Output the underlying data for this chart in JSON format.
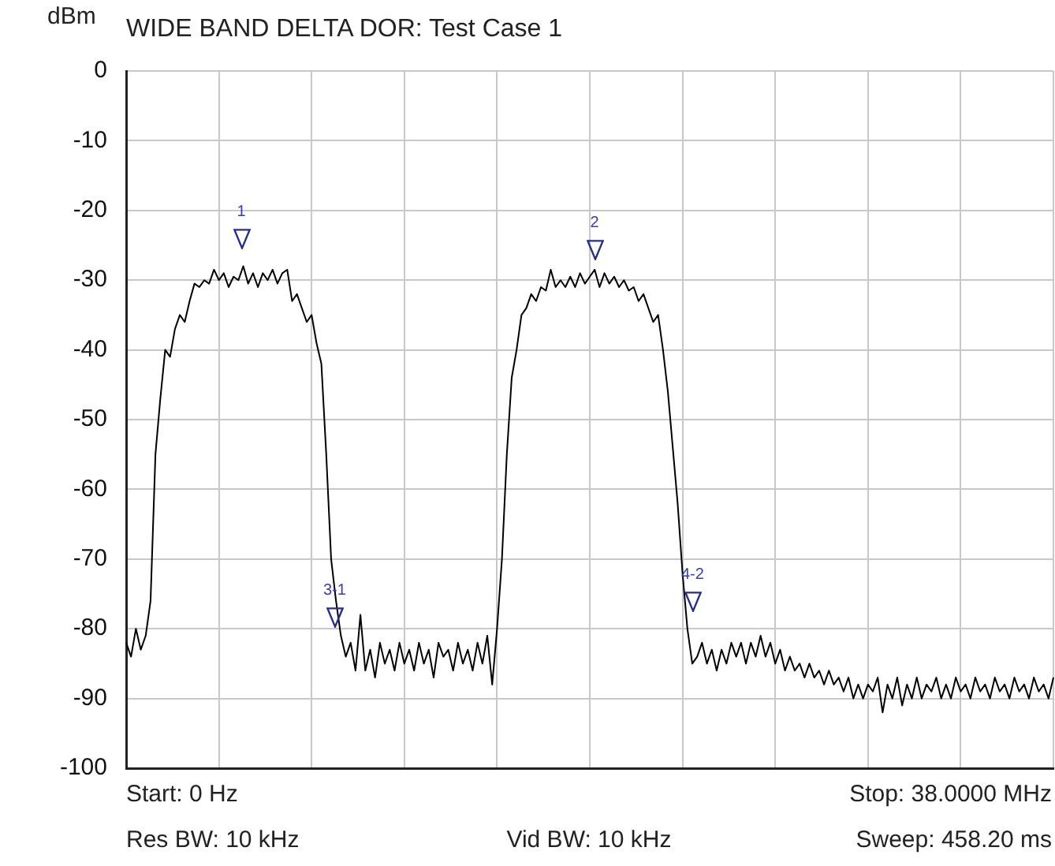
{
  "chart_data": {
    "type": "line",
    "title": "WIDE BAND DELTA DOR: Test Case 1",
    "ylabel": "dBm",
    "categories": [
      null,
      null,
      null,
      null,
      null,
      null,
      null,
      null,
      null,
      null,
      null,
      null,
      null,
      null,
      null,
      null,
      null,
      null,
      null,
      null,
      null,
      null,
      null,
      null,
      null,
      null,
      null,
      null,
      null,
      null,
      null,
      null,
      null,
      null,
      null,
      null,
      null,
      null,
      null,
      null,
      null,
      null,
      null,
      null,
      null,
      null,
      null,
      null,
      null,
      null,
      null,
      null,
      null,
      null,
      null,
      null,
      null,
      null,
      null,
      null,
      null,
      null,
      null,
      null,
      null,
      null,
      null,
      null,
      null,
      null,
      null,
      null,
      null,
      null,
      null,
      null,
      null,
      null,
      null,
      null,
      null,
      null,
      null,
      null,
      null,
      null,
      null,
      null,
      null,
      null,
      null,
      null,
      null,
      null,
      null,
      null,
      null,
      null,
      null,
      null,
      null,
      null,
      null,
      null,
      null,
      null,
      null,
      null,
      null,
      null,
      null,
      null,
      null,
      null,
      null,
      null,
      null,
      null,
      null,
      null,
      null,
      null,
      null,
      null,
      null,
      null,
      null,
      null,
      null,
      null,
      null,
      null,
      null,
      null,
      null,
      null,
      null,
      null,
      null,
      null,
      null,
      null,
      null,
      null,
      null,
      null,
      null,
      null,
      null,
      null,
      null,
      null,
      null,
      null,
      null,
      null,
      null,
      null,
      null,
      null,
      null,
      null,
      null,
      null,
      null,
      null,
      null,
      null,
      null,
      null,
      null,
      null,
      null,
      null,
      null,
      null,
      null,
      null,
      null,
      null,
      null,
      null,
      null,
      null,
      null,
      null,
      null,
      null,
      null,
      null,
      null
    ],
    "ylim": [
      -100,
      0
    ],
    "yticks": [
      0,
      -10,
      -20,
      -30,
      -40,
      -50,
      -60,
      -70,
      -80,
      -90,
      -100
    ],
    "tick_labels": "y",
    "grid": true,
    "legend": false,
    "marker": "none",
    "line_style": "solid",
    "series": [
      {
        "color": "#000000",
        "values": [
          -82,
          -84,
          -80,
          -83,
          -81,
          -76,
          -55,
          -47,
          -40,
          -41,
          -37,
          -35,
          -36,
          -33,
          -30.5,
          -31,
          -30,
          -30.5,
          -28.5,
          -30,
          -29,
          -31,
          -29.5,
          -30,
          -28,
          -30.5,
          -29,
          -31,
          -29,
          -30,
          -28.5,
          -30.5,
          -29,
          -28.5,
          -33,
          -32,
          -34,
          -36,
          -35,
          -39,
          -42,
          -55,
          -70,
          -76,
          -81,
          -84,
          -82,
          -86,
          -78,
          -86,
          -83,
          -87,
          -82,
          -85,
          -83,
          -86,
          -82,
          -85,
          -83,
          -86,
          -82,
          -85,
          -83,
          -87,
          -82,
          -84,
          -83,
          -86,
          -82,
          -85,
          -83,
          -86,
          -82,
          -85,
          -81,
          -88,
          -80,
          -70,
          -55,
          -44,
          -40,
          -35,
          -34,
          -32,
          -33,
          -31,
          -31.5,
          -28.5,
          -31,
          -30,
          -31,
          -29.5,
          -31,
          -29,
          -30.5,
          -29.5,
          -28.5,
          -31,
          -29,
          -30.5,
          -29.5,
          -31,
          -30,
          -31.5,
          -31,
          -33,
          -32,
          -34,
          -36,
          -35,
          -40,
          -46,
          -54,
          -62,
          -72,
          -80,
          -85,
          -84,
          -82,
          -85,
          -83,
          -86,
          -83,
          -85,
          -82,
          -84,
          -82,
          -85,
          -82,
          -84,
          -81,
          -84,
          -82,
          -85,
          -83,
          -86,
          -84,
          -86,
          -85,
          -87,
          -85,
          -87,
          -86,
          -88,
          -86,
          -88,
          -87,
          -89,
          -87,
          -90,
          -88,
          -90,
          -88,
          -89,
          -87,
          -92,
          -88,
          -90,
          -87,
          -91,
          -88,
          -90,
          -87,
          -90,
          -88,
          -89,
          -87,
          -90,
          -88,
          -90,
          -87,
          -89,
          -88,
          -90,
          -87,
          -89,
          -88,
          -90,
          -87,
          -89,
          -88,
          -90,
          -87,
          -89,
          -88,
          -90,
          -87,
          -89,
          -88,
          -90,
          -87
        ]
      }
    ],
    "annotations": [
      "1",
      "2",
      "3-1",
      "4-2",
      "Start: 0 Hz",
      "Stop: 38.0000 MHz",
      "Res BW: 10 kHz",
      "Vid BW: 10 kHz",
      "Sweep: 458.20 ms"
    ]
  }
}
